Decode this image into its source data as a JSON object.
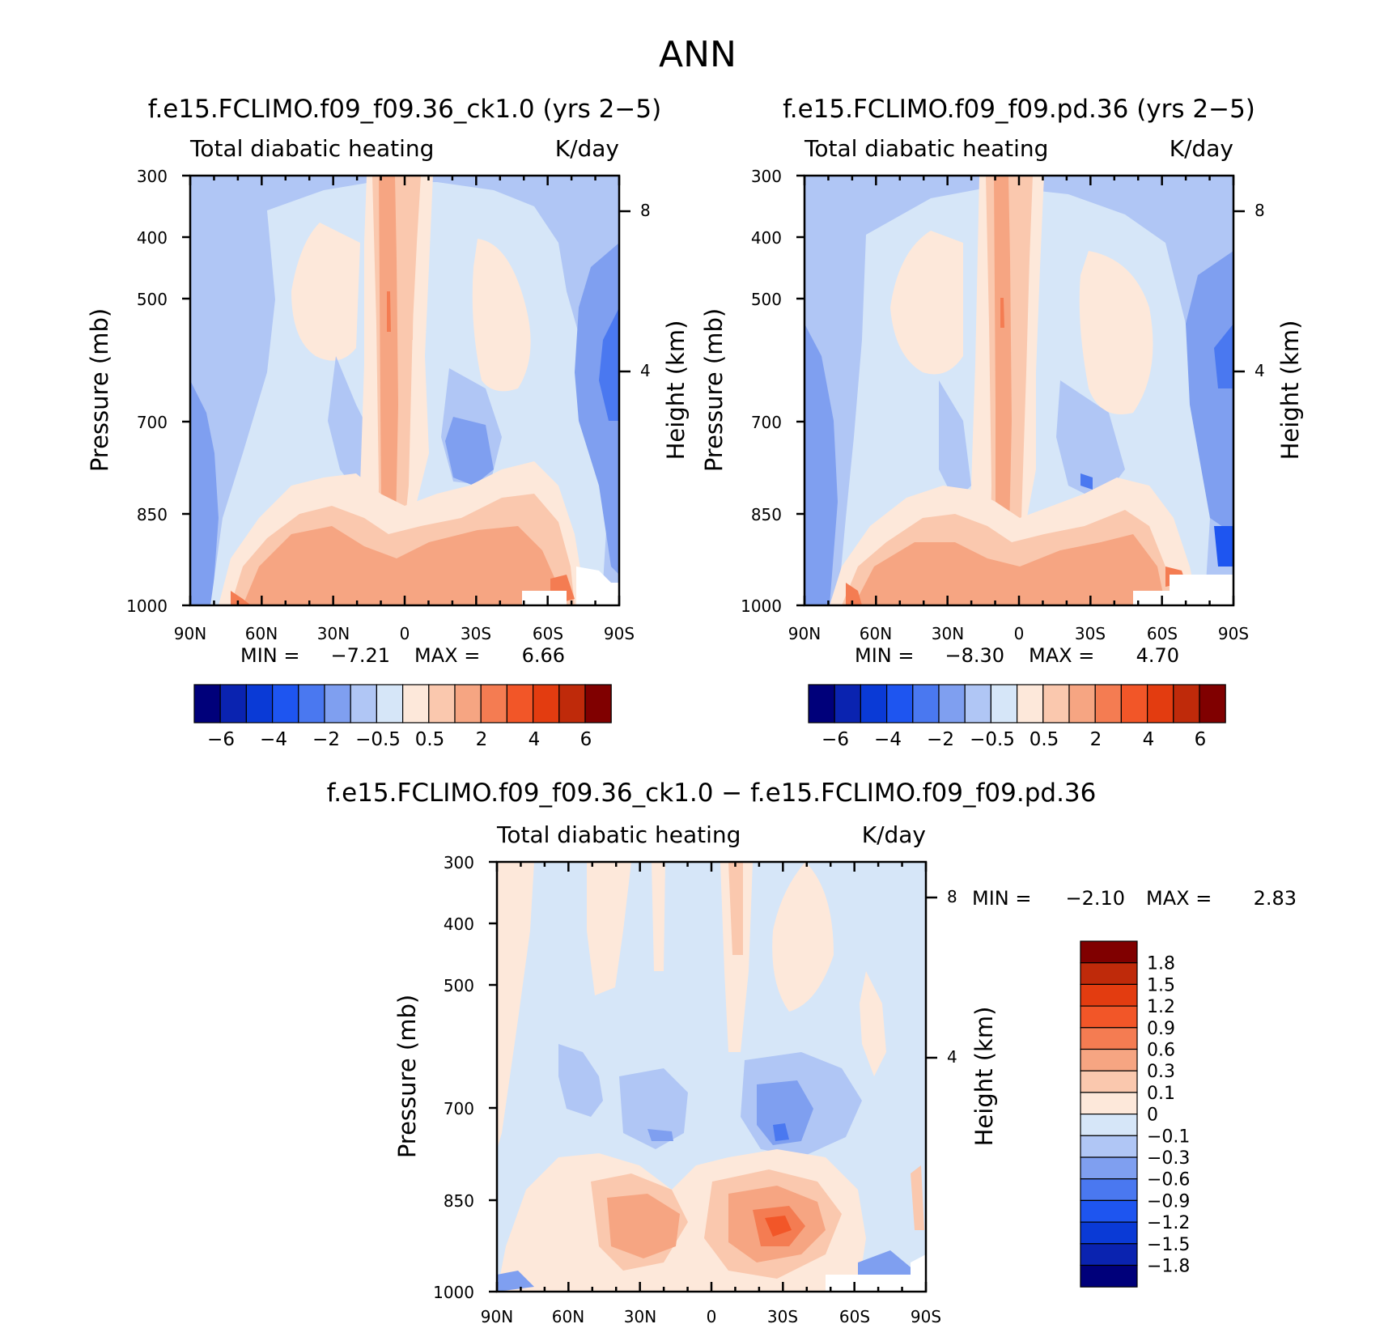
{
  "page_title": "ANN",
  "chart_data": [
    {
      "type": "heatmap",
      "title": "f.e15.FCLIMO.f09_f09.36_ck1.0 (yrs 2−5)",
      "subtitle_left": "Total diabatic heating",
      "subtitle_right": "K/day",
      "ylabel": "Pressure (mb)",
      "ylabel_right": "Height (km)",
      "x_ticks": [
        "90N",
        "60N",
        "30N",
        "0",
        "30S",
        "60S",
        "90S"
      ],
      "y_ticks": [
        "300",
        "400",
        "500",
        "700",
        "850",
        "1000"
      ],
      "y_right_ticks": [
        "8",
        "4"
      ],
      "min_label": "MIN =",
      "min_value": "−7.21",
      "max_label": "MAX =",
      "max_value": "6.66",
      "colorbar_ticks": [
        "−6",
        "−4",
        "−2",
        "−0.5",
        "0.5",
        "2",
        "4",
        "6"
      ]
    },
    {
      "type": "heatmap",
      "title": "f.e15.FCLIMO.f09_f09.pd.36 (yrs 2−5)",
      "subtitle_left": "Total diabatic heating",
      "subtitle_right": "K/day",
      "ylabel": "Pressure (mb)",
      "ylabel_right": "Height (km)",
      "x_ticks": [
        "90N",
        "60N",
        "30N",
        "0",
        "30S",
        "60S",
        "90S"
      ],
      "y_ticks": [
        "300",
        "400",
        "500",
        "700",
        "850",
        "1000"
      ],
      "y_right_ticks": [
        "8",
        "4"
      ],
      "min_label": "MIN =",
      "min_value": "−8.30",
      "max_label": "MAX =",
      "max_value": "4.70",
      "colorbar_ticks": [
        "−6",
        "−4",
        "−2",
        "−0.5",
        "0.5",
        "2",
        "4",
        "6"
      ]
    },
    {
      "type": "heatmap",
      "title": "f.e15.FCLIMO.f09_f09.36_ck1.0 − f.e15.FCLIMO.f09_f09.pd.36",
      "subtitle_left": "Total diabatic heating",
      "subtitle_right": "K/day",
      "ylabel": "Pressure (mb)",
      "ylabel_right": "Height (km)",
      "x_ticks": [
        "90N",
        "60N",
        "30N",
        "0",
        "30S",
        "60S",
        "90S"
      ],
      "y_ticks": [
        "300",
        "400",
        "500",
        "700",
        "850",
        "1000"
      ],
      "y_right_ticks": [
        "8",
        "4"
      ],
      "min_label": "MIN =",
      "min_value": "−2.10",
      "max_label": "MAX =",
      "max_value": "2.83",
      "colorbar_ticks": [
        "1.8",
        "1.5",
        "1.2",
        "0.9",
        "0.6",
        "0.3",
        "0.1",
        "0",
        "−0.1",
        "−0.3",
        "−0.6",
        "−0.9",
        "−1.2",
        "−1.5",
        "−1.8"
      ]
    }
  ],
  "palette": [
    "#00007a",
    "#0a23b0",
    "#0a3ad6",
    "#1e55f0",
    "#4a78f0",
    "#7f9ff0",
    "#b0c6f5",
    "#d6e6f8",
    "#fde8da",
    "#fac8ae",
    "#f6a582",
    "#f47c52",
    "#f25628",
    "#e33c10",
    "#bf2a0a",
    "#800000"
  ],
  "diff_palette": [
    "#00007a",
    "#0a23b0",
    "#0a3ad6",
    "#1e55f0",
    "#4a78f0",
    "#7f9ff0",
    "#b0c6f5",
    "#d6e6f8",
    "#fde8da",
    "#fac8ae",
    "#f6a582",
    "#f47c52",
    "#f25628",
    "#e33c10",
    "#bf2a0a",
    "#800000"
  ]
}
